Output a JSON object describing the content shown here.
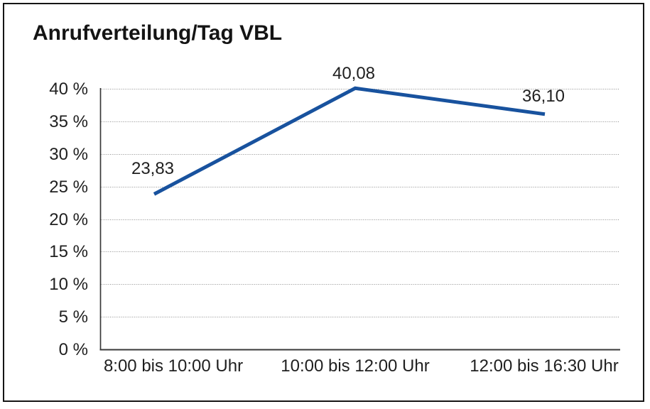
{
  "frame": {
    "background": "#ffffff",
    "border_color": "#151515"
  },
  "chart_data": {
    "type": "line",
    "title": "Anrufverteilung/Tag VBL",
    "categories": [
      "8:00 bis 10:00 Uhr",
      "10:00 bis 12:00 Uhr",
      "12:00 bis 16:30 Uhr"
    ],
    "values": [
      23.83,
      40.08,
      36.1
    ],
    "point_labels": [
      "23,83",
      "40,08",
      "36,10"
    ],
    "y_ticks": [
      {
        "value": 0,
        "label": "0 %"
      },
      {
        "value": 5,
        "label": "5 %"
      },
      {
        "value": 10,
        "label": "10 %"
      },
      {
        "value": 15,
        "label": "15 %"
      },
      {
        "value": 20,
        "label": "20 %"
      },
      {
        "value": 25,
        "label": "25 %"
      },
      {
        "value": 30,
        "label": "30 %"
      },
      {
        "value": 35,
        "label": "35 %"
      },
      {
        "value": 40,
        "label": "40 %"
      }
    ],
    "ylim": [
      0,
      40
    ],
    "grid": "horizontal dotted",
    "legend": "none",
    "line_color": "#18529E",
    "grid_color": "#8f8f8f",
    "axis_color": "#383838",
    "text_color": "#1f1f1f"
  }
}
